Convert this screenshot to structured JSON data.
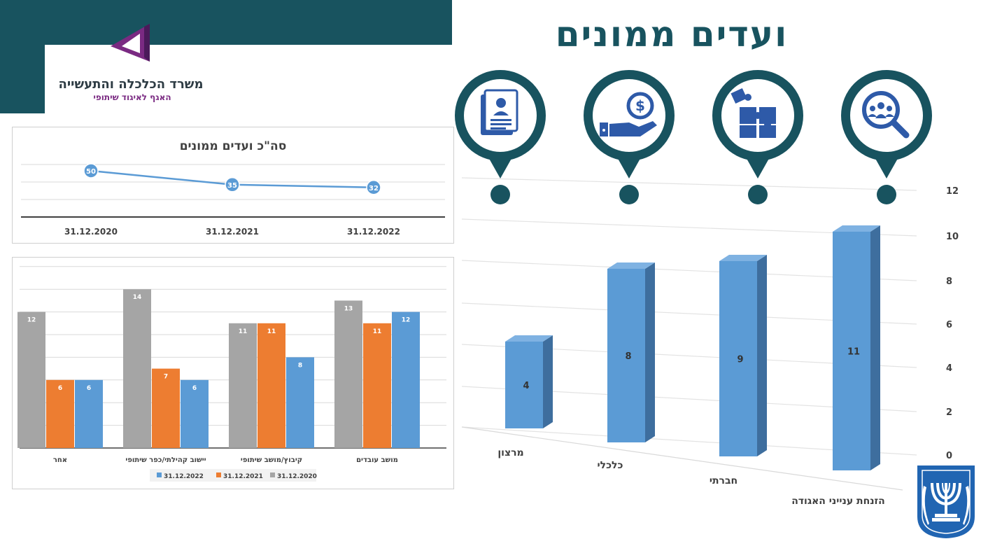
{
  "header": {
    "ministry_name": "משרד הכלכלה והתעשייה",
    "ministry_sub": "האגף לאיגוד שיתופי",
    "page_title": "ועדים ממונים"
  },
  "colors": {
    "banner": "#18535f",
    "logo_purple": "#7a2a82",
    "series_2022": "#5b9bd5",
    "series_2021": "#ed7d31",
    "series_2020": "#a5a5a5",
    "bar3d_front": "#5b9bd5",
    "bar3d_side": "#3e6e9e",
    "icon_blue": "#2e5aa8"
  },
  "icons": [
    "document-person-icon",
    "hand-coin-icon",
    "puzzle-icon",
    "team-search-icon"
  ],
  "chart_data": [
    {
      "type": "line",
      "title": "סה\"כ ועדים ממונים",
      "categories": [
        "31.12.2020",
        "31.12.2021",
        "31.12.2022"
      ],
      "values": [
        50,
        35,
        32
      ],
      "grid": true
    },
    {
      "type": "bar",
      "categories": [
        "מושב עובדים",
        "קיבוץ/מושב שיתופי",
        "יישוב קהילתי/כפר שיתופי",
        "אחר"
      ],
      "series": [
        {
          "name": "31.12.2020",
          "values": [
            13,
            11,
            14,
            12
          ]
        },
        {
          "name": "31.12.2021",
          "values": [
            11,
            11,
            7,
            6
          ]
        },
        {
          "name": "31.12.2022",
          "values": [
            12,
            8,
            6,
            6
          ]
        }
      ],
      "legend": [
        "31.12.2022",
        "31.12.2021",
        "31.12.2020"
      ],
      "legend_position": "bottom",
      "grid": true
    },
    {
      "type": "bar",
      "categories": [
        "הזנחת ענייני האגודה",
        "חברתי",
        "כלכלי",
        "מרצון"
      ],
      "values": [
        11,
        9,
        8,
        4
      ],
      "yticks": [
        "0",
        "2",
        "4",
        "6",
        "8",
        "10",
        "12"
      ],
      "ylim": [
        0,
        12
      ],
      "grid": true
    }
  ]
}
